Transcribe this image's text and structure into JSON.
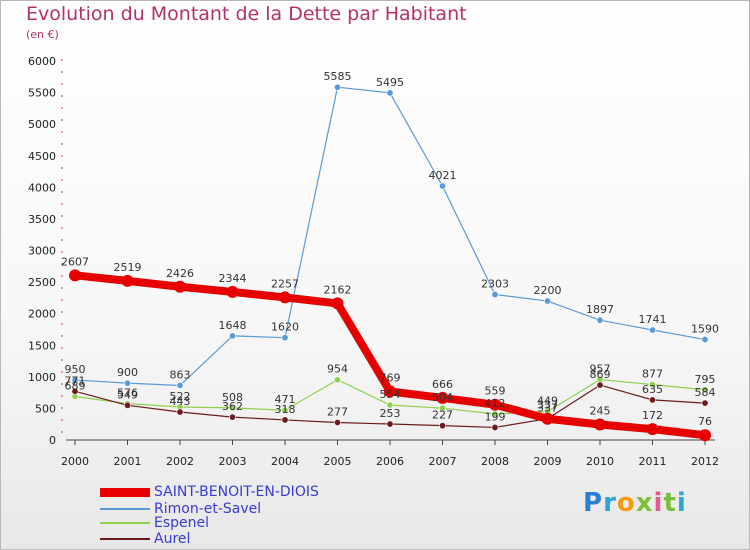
{
  "title": "Evolution du Montant de la Dette par Habitant",
  "subtitle": "(en €)",
  "logo_text": "Proxiti",
  "colors": {
    "title": "#b5306a",
    "legend_text": "#3a3ad6"
  },
  "chart_data": {
    "type": "line",
    "title": "Evolution du Montant de la Dette par Habitant",
    "subtitle": "(en €)",
    "x": [
      "2000",
      "2001",
      "2002",
      "2003",
      "2004",
      "2005",
      "2006",
      "2007",
      "2008",
      "2009",
      "2010",
      "2011",
      "2012"
    ],
    "ylim": [
      0,
      6000
    ],
    "yticks": [
      "0",
      "500",
      "1000",
      "1500",
      "2000",
      "2500",
      "3000",
      "3500",
      "4000",
      "4500",
      "5000",
      "5500",
      "6000"
    ],
    "grid": false,
    "legend_position": "bottom-left",
    "series": [
      {
        "name": "SAINT-BENOIT-EN-DIOIS",
        "color": "#e60000",
        "width": 8,
        "values": [
          2607,
          2519,
          2426,
          2344,
          2257,
          2162,
          769,
          666,
          559,
          337,
          245,
          172,
          76
        ],
        "labels": [
          "2607",
          "2519",
          "2426",
          "2344",
          "2257",
          "2162",
          "769",
          "666",
          "559",
          "337",
          "245",
          "172",
          "76"
        ]
      },
      {
        "name": "Rimon-et-Savel",
        "color": "#5b9bd5",
        "width": 1.2,
        "values": [
          950,
          900,
          863,
          1648,
          1620,
          5585,
          5495,
          4021,
          2303,
          2200,
          1897,
          1741,
          1590
        ],
        "labels": [
          "950",
          "900",
          "863",
          "1648",
          "1620",
          "5585",
          "5495",
          "4021",
          "2303",
          "2200",
          "1897",
          "1741",
          "1590"
        ]
      },
      {
        "name": "Espenel",
        "color": "#8fd14f",
        "width": 1.2,
        "values": [
          689,
          576,
          522,
          508,
          471,
          954,
          554,
          504,
          412,
          449,
          957,
          877,
          795
        ],
        "labels": [
          "689",
          "576",
          "522",
          "508",
          "471",
          "954",
          "554",
          "504",
          "412",
          "449",
          "957",
          "877",
          "795"
        ]
      },
      {
        "name": "Aurel",
        "color": "#6b1b1b",
        "width": 1.2,
        "values": [
          771,
          549,
          443,
          362,
          318,
          277,
          253,
          227,
          199,
          337,
          869,
          635,
          584
        ],
        "labels": [
          "771",
          "549",
          "443",
          "362",
          "318",
          "277",
          "253",
          "227",
          "199",
          "337",
          "869",
          "635",
          "584"
        ]
      }
    ]
  }
}
